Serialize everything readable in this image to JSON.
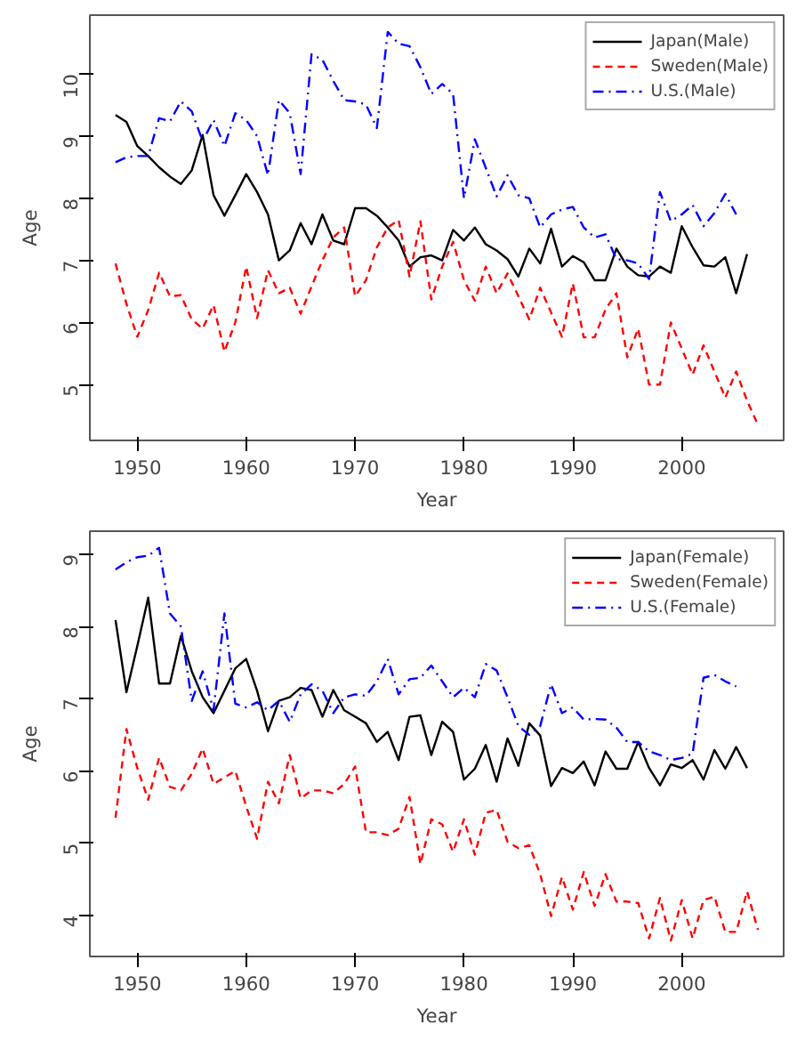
{
  "chart_data": [
    {
      "type": "line",
      "xlabel": "Year",
      "ylabel": "Age",
      "xlim": [
        1945.64,
        2009.36
      ],
      "ylim": [
        4.1,
        10.95
      ],
      "xticks": [
        1950,
        1960,
        1970,
        1980,
        1990,
        2000
      ],
      "yticks": [
        5,
        6,
        7,
        8,
        9,
        10
      ],
      "grid": false,
      "legend": "top right",
      "series": [
        {
          "name": "Japan(Male)",
          "color": "#000000",
          "line_style": "solid",
          "x": [
            1948,
            1949,
            1950,
            1951,
            1952,
            1953,
            1954,
            1955,
            1956,
            1957,
            1958,
            1959,
            1960,
            1961,
            1962,
            1963,
            1964,
            1965,
            1966,
            1967,
            1968,
            1969,
            1970,
            1971,
            1972,
            1973,
            1974,
            1975,
            1976,
            1977,
            1978,
            1979,
            1980,
            1981,
            1982,
            1983,
            1984,
            1985,
            1986,
            1987,
            1988,
            1989,
            1990,
            1991,
            1992,
            1993,
            1994,
            1995,
            1996,
            1997,
            1998,
            1999,
            2000,
            2001,
            2002,
            2003,
            2004,
            2005,
            2006
          ],
          "values": [
            9.34,
            9.23,
            8.84,
            8.68,
            8.5,
            8.35,
            8.23,
            8.45,
            9.02,
            8.05,
            7.72,
            8.05,
            8.39,
            8.1,
            7.74,
            7.0,
            7.16,
            7.6,
            7.26,
            7.74,
            7.32,
            7.26,
            7.84,
            7.84,
            7.72,
            7.53,
            7.32,
            6.9,
            7.05,
            7.08,
            7.0,
            7.49,
            7.32,
            7.53,
            7.26,
            7.16,
            7.02,
            6.74,
            7.19,
            6.95,
            7.51,
            6.9,
            7.07,
            6.97,
            6.68,
            6.68,
            7.19,
            6.9,
            6.76,
            6.74,
            6.9,
            6.8,
            7.55,
            7.21,
            6.92,
            6.9,
            7.05,
            6.47,
            7.1
          ]
        },
        {
          "name": "Sweden(Male)",
          "color": "#ff0000",
          "line_style": "dashed",
          "x": [
            1948,
            1949,
            1950,
            1951,
            1952,
            1953,
            1954,
            1955,
            1956,
            1957,
            1958,
            1959,
            1960,
            1961,
            1962,
            1963,
            1964,
            1965,
            1966,
            1967,
            1968,
            1969,
            1970,
            1971,
            1972,
            1973,
            1974,
            1975,
            1976,
            1977,
            1978,
            1979,
            1980,
            1981,
            1982,
            1983,
            1984,
            1985,
            1986,
            1987,
            1988,
            1989,
            1990,
            1991,
            1992,
            1993,
            1994,
            1995,
            1996,
            1997,
            1998,
            1999,
            2000,
            2001,
            2002,
            2003,
            2004,
            2005,
            2006,
            2007
          ],
          "values": [
            6.95,
            6.3,
            5.77,
            6.2,
            6.8,
            6.42,
            6.44,
            6.05,
            5.9,
            6.28,
            5.53,
            6.0,
            6.9,
            6.07,
            6.84,
            6.47,
            6.56,
            6.14,
            6.58,
            7.0,
            7.37,
            7.53,
            6.42,
            6.68,
            7.21,
            7.53,
            7.65,
            6.74,
            7.63,
            6.37,
            6.9,
            7.3,
            6.68,
            6.35,
            6.9,
            6.47,
            6.79,
            6.42,
            6.05,
            6.56,
            6.16,
            5.77,
            6.63,
            5.76,
            5.76,
            6.21,
            6.47,
            5.44,
            5.9,
            5.0,
            5.0,
            6.0,
            5.58,
            5.16,
            5.63,
            5.21,
            4.79,
            5.21,
            4.74,
            4.35
          ]
        },
        {
          "name": "U.S.(Male)",
          "color": "#0000ff",
          "line_style": "dashdot",
          "x": [
            1948,
            1949,
            1950,
            1951,
            1952,
            1953,
            1954,
            1955,
            1956,
            1957,
            1958,
            1959,
            1960,
            1961,
            1962,
            1963,
            1964,
            1965,
            1966,
            1967,
            1968,
            1969,
            1970,
            1971,
            1972,
            1973,
            1974,
            1975,
            1976,
            1977,
            1978,
            1979,
            1980,
            1981,
            1982,
            1983,
            1984,
            1985,
            1986,
            1987,
            1988,
            1989,
            1990,
            1991,
            1992,
            1993,
            1994,
            1995,
            1996,
            1997,
            1998,
            1999,
            2000,
            2001,
            2002,
            2003,
            2004,
            2005
          ],
          "values": [
            8.58,
            8.66,
            8.68,
            8.68,
            9.29,
            9.24,
            9.56,
            9.4,
            8.92,
            9.26,
            8.84,
            9.37,
            9.26,
            9.0,
            8.37,
            9.58,
            9.37,
            8.39,
            10.32,
            10.23,
            9.89,
            9.58,
            9.56,
            9.51,
            9.13,
            10.68,
            10.49,
            10.45,
            10.11,
            9.68,
            9.84,
            9.68,
            8.0,
            8.95,
            8.49,
            8.03,
            8.37,
            8.05,
            8.0,
            7.53,
            7.74,
            7.82,
            7.86,
            7.53,
            7.37,
            7.42,
            7.02,
            7.0,
            6.95,
            6.7,
            8.1,
            7.63,
            7.74,
            7.89,
            7.55,
            7.76,
            8.07,
            7.74
          ]
        }
      ]
    },
    {
      "type": "line",
      "xlabel": "Year",
      "ylabel": "Age",
      "xlim": [
        1945.64,
        2009.36
      ],
      "ylim": [
        3.43,
        9.32
      ],
      "xticks": [
        1950,
        1960,
        1970,
        1980,
        1990,
        2000
      ],
      "yticks": [
        4,
        5,
        6,
        7,
        8,
        9
      ],
      "grid": false,
      "legend": "top right",
      "series": [
        {
          "name": "Japan(Female)",
          "color": "#000000",
          "line_style": "solid",
          "x": [
            1948,
            1949,
            1950,
            1951,
            1952,
            1953,
            1954,
            1955,
            1956,
            1957,
            1958,
            1959,
            1960,
            1961,
            1962,
            1963,
            1964,
            1965,
            1966,
            1967,
            1968,
            1969,
            1970,
            1971,
            1972,
            1973,
            1974,
            1975,
            1976,
            1977,
            1978,
            1979,
            1980,
            1981,
            1982,
            1983,
            1984,
            1985,
            1986,
            1987,
            1988,
            1989,
            1990,
            1991,
            1992,
            1993,
            1994,
            1995,
            1996,
            1997,
            1998,
            1999,
            2000,
            2001,
            2002,
            2003,
            2004,
            2005,
            2006
          ],
          "values": [
            8.09,
            7.09,
            7.73,
            8.4,
            7.21,
            7.21,
            7.87,
            7.38,
            7.02,
            6.8,
            7.11,
            7.42,
            7.55,
            7.11,
            6.55,
            6.97,
            7.02,
            7.15,
            7.12,
            6.75,
            7.12,
            6.84,
            6.75,
            6.66,
            6.4,
            6.54,
            6.15,
            6.75,
            6.77,
            6.22,
            6.68,
            6.54,
            5.88,
            6.03,
            6.36,
            5.85,
            6.45,
            6.07,
            6.66,
            6.49,
            5.79,
            6.04,
            5.97,
            6.13,
            5.8,
            6.27,
            6.03,
            6.03,
            6.4,
            6.04,
            5.8,
            6.09,
            6.04,
            6.15,
            5.88,
            6.29,
            6.03,
            6.33,
            6.04
          ]
        },
        {
          "name": "Sweden(Female)",
          "color": "#ff0000",
          "line_style": "dashed",
          "x": [
            1948,
            1949,
            1950,
            1951,
            1952,
            1953,
            1954,
            1955,
            1956,
            1957,
            1958,
            1959,
            1960,
            1961,
            1962,
            1963,
            1964,
            1965,
            1966,
            1967,
            1968,
            1969,
            1970,
            1971,
            1972,
            1973,
            1974,
            1975,
            1976,
            1977,
            1978,
            1979,
            1980,
            1981,
            1982,
            1983,
            1984,
            1985,
            1986,
            1987,
            1988,
            1989,
            1990,
            1991,
            1992,
            1993,
            1994,
            1995,
            1996,
            1997,
            1998,
            1999,
            2000,
            2001,
            2002,
            2003,
            2004,
            2005,
            2006,
            2007
          ],
          "values": [
            5.35,
            6.58,
            6.04,
            5.6,
            6.18,
            5.78,
            5.73,
            5.96,
            6.31,
            5.82,
            5.91,
            6.0,
            5.51,
            5.06,
            5.85,
            5.55,
            6.22,
            5.62,
            5.73,
            5.73,
            5.69,
            5.82,
            6.06,
            5.15,
            5.15,
            5.11,
            5.2,
            5.64,
            4.71,
            5.33,
            5.26,
            4.88,
            5.33,
            4.84,
            5.42,
            5.46,
            5.02,
            4.93,
            4.97,
            4.57,
            3.99,
            4.53,
            4.08,
            4.6,
            4.13,
            4.57,
            4.19,
            4.19,
            4.17,
            3.68,
            4.24,
            3.65,
            4.21,
            3.68,
            4.21,
            4.26,
            3.77,
            3.77,
            4.33,
            3.8
          ]
        },
        {
          "name": "U.S.(Female)",
          "color": "#0000ff",
          "line_style": "dashdot",
          "x": [
            1948,
            1949,
            1950,
            1951,
            1952,
            1953,
            1954,
            1955,
            1956,
            1957,
            1958,
            1959,
            1960,
            1961,
            1962,
            1963,
            1964,
            1965,
            1966,
            1967,
            1968,
            1969,
            1970,
            1971,
            1972,
            1973,
            1974,
            1975,
            1976,
            1977,
            1978,
            1979,
            1980,
            1981,
            1982,
            1983,
            1984,
            1985,
            1986,
            1987,
            1988,
            1989,
            1990,
            1991,
            1992,
            1993,
            1994,
            1995,
            1996,
            1997,
            1998,
            1999,
            2000,
            2001,
            2002,
            2003,
            2004,
            2005
          ],
          "values": [
            8.79,
            8.89,
            8.96,
            8.98,
            9.09,
            8.18,
            8.0,
            6.97,
            7.38,
            6.84,
            8.18,
            6.93,
            6.88,
            6.95,
            6.84,
            6.97,
            6.68,
            7.06,
            7.2,
            7.11,
            6.8,
            7.02,
            7.06,
            7.04,
            7.24,
            7.55,
            7.06,
            7.27,
            7.29,
            7.46,
            7.24,
            7.02,
            7.15,
            7.02,
            7.48,
            7.39,
            7.02,
            6.62,
            6.5,
            6.62,
            7.2,
            6.8,
            6.88,
            6.71,
            6.72,
            6.71,
            6.6,
            6.4,
            6.4,
            6.27,
            6.22,
            6.15,
            6.18,
            6.24,
            7.29,
            7.33,
            7.24,
            7.17
          ]
        }
      ]
    }
  ]
}
